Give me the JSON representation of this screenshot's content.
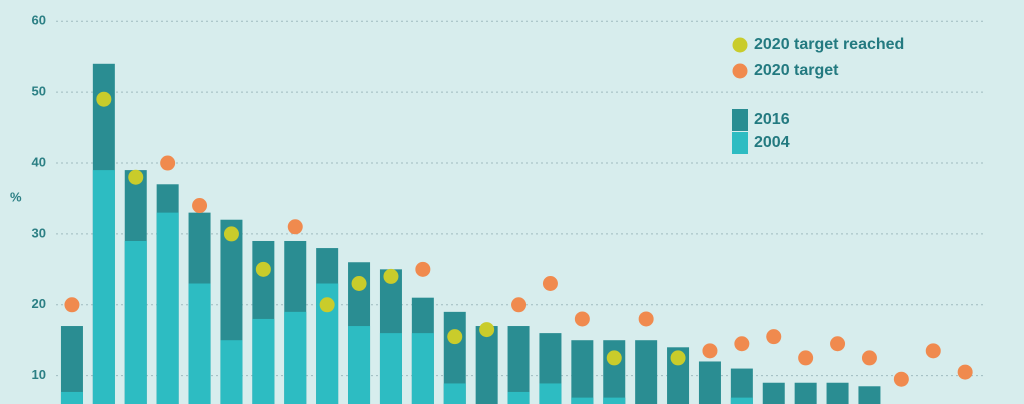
{
  "chart_data": {
    "type": "bar",
    "ylabel": "%",
    "categories": [
      null,
      null,
      null,
      null,
      null,
      null,
      null,
      null,
      null,
      null,
      null,
      null,
      null,
      null,
      null,
      null,
      null,
      null,
      null,
      null,
      null,
      null,
      null,
      null,
      null,
      null,
      null,
      null,
      null
    ],
    "ylim": [
      6,
      63
    ],
    "yticks": [
      10,
      20,
      30,
      40,
      50,
      60
    ],
    "grid": true,
    "legend": "top-right",
    "series": [
      {
        "name": "2016",
        "color": "#2a8d92",
        "mark": "bar",
        "values": [
          17,
          54,
          39,
          37,
          33,
          32,
          29,
          29,
          28,
          26,
          25,
          21,
          19,
          17,
          17,
          16,
          15,
          15,
          15,
          14,
          12,
          11,
          9,
          9,
          9,
          8.5,
          null,
          null,
          null
        ]
      },
      {
        "name": "2004",
        "color": "#2dbcc2",
        "mark": "bar",
        "values": [
          7.7,
          39,
          29,
          33,
          23,
          15,
          18,
          19,
          23,
          17,
          16,
          16,
          8.9,
          null,
          7.7,
          8.9,
          6.9,
          6.9,
          null,
          null,
          null,
          6.9,
          null,
          null,
          null,
          null,
          null,
          null,
          null
        ]
      },
      {
        "name": "2020 target reached",
        "color": "#c9cc2b",
        "mark": "dot",
        "values": [
          null,
          49,
          38,
          null,
          null,
          30,
          25,
          null,
          20,
          23,
          24,
          null,
          15.5,
          16.5,
          null,
          null,
          null,
          12.5,
          null,
          12.5,
          null,
          null,
          null,
          null,
          null,
          null,
          null,
          null,
          null
        ]
      },
      {
        "name": "2020 target",
        "color": "#f08a4e",
        "mark": "dot",
        "values": [
          20,
          null,
          null,
          40,
          34,
          null,
          null,
          31,
          null,
          null,
          null,
          25,
          null,
          null,
          20,
          23,
          18,
          null,
          18,
          null,
          13.5,
          14.5,
          15.5,
          12.5,
          14.5,
          12.5,
          9.5,
          13.5,
          10.5
        ]
      }
    ]
  }
}
